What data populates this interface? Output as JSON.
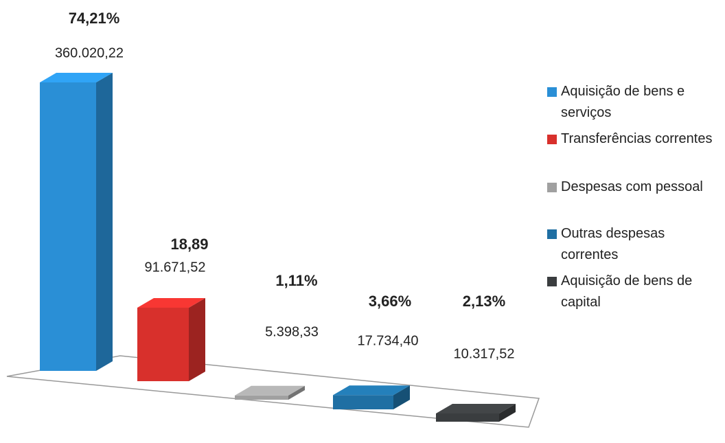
{
  "chart_data": {
    "type": "bar3d",
    "categories": [
      "Aquisição de bens e serviços",
      "Transferências correntes",
      "Despesas com pessoal",
      "Outras despesas correntes",
      "Aquisição de bens de capital"
    ],
    "values": [
      360020.22,
      91671.52,
      5398.33,
      17734.4,
      10317.52
    ],
    "value_labels": [
      "360.020,22",
      "91.671,52",
      "5.398,33",
      "17.734,40",
      "10.317,52"
    ],
    "percentages": [
      74.21,
      18.89,
      1.11,
      3.66,
      2.13
    ],
    "percentage_labels": [
      "74,21%",
      "18,89",
      "1,11%",
      "3,66%",
      "2,13%"
    ],
    "colors": [
      "#2a8fd6",
      "#d8302c",
      "#a0a0a0",
      "#1f6fa3",
      "#3a3d3f"
    ],
    "legend": "right"
  }
}
